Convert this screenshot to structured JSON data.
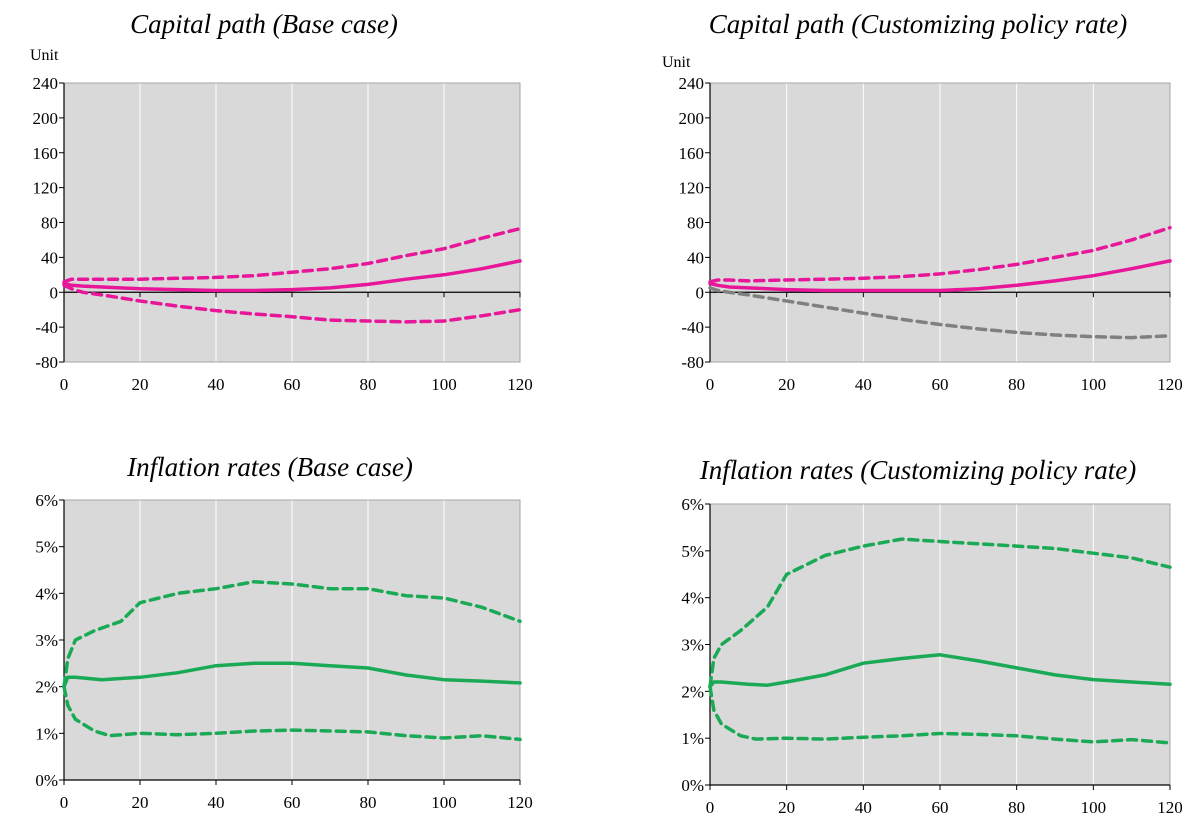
{
  "chart_data": [
    {
      "type": "line",
      "title": "Capital path (Base case)",
      "ylabel": "Unit",
      "xlabel": "",
      "x_ticks": [
        0,
        20,
        40,
        60,
        80,
        100,
        120
      ],
      "y_ticks": [
        -80,
        -40,
        0,
        40,
        80,
        120,
        160,
        200,
        240
      ],
      "y_tick_labels": [
        "-80",
        "-40",
        "0",
        "40",
        "80",
        "120",
        "160",
        "200",
        "240"
      ],
      "xlim": [
        0,
        120
      ],
      "ylim": [
        -80,
        240
      ],
      "grid": true,
      "series": [
        {
          "style": "solid",
          "color": "#e8179a",
          "x": [
            0,
            2,
            5,
            10,
            20,
            30,
            40,
            50,
            60,
            70,
            80,
            90,
            100,
            110,
            120
          ],
          "values": [
            10,
            8,
            7,
            6,
            4,
            3,
            2,
            2,
            3,
            5,
            9,
            15,
            20,
            27,
            36
          ]
        },
        {
          "style": "dashed",
          "color": "#e8179a",
          "x": [
            0,
            2,
            5,
            10,
            20,
            30,
            40,
            50,
            60,
            70,
            80,
            90,
            100,
            110,
            120
          ],
          "values": [
            12,
            15,
            15,
            15,
            15,
            16,
            17,
            19,
            23,
            27,
            33,
            42,
            50,
            62,
            73
          ]
        },
        {
          "style": "dashed",
          "color": "#e8179a",
          "x": [
            0,
            2,
            5,
            10,
            20,
            30,
            40,
            50,
            60,
            70,
            80,
            90,
            100,
            110,
            120
          ],
          "values": [
            8,
            4,
            0,
            -3,
            -10,
            -16,
            -21,
            -25,
            -28,
            -32,
            -33,
            -34,
            -33,
            -27,
            -20
          ]
        }
      ]
    },
    {
      "type": "line",
      "title": "Capital path (Customizing policy rate)",
      "ylabel": "Unit",
      "xlabel": "",
      "x_ticks": [
        0,
        20,
        40,
        60,
        80,
        100,
        120
      ],
      "y_ticks": [
        -80,
        -40,
        0,
        40,
        80,
        120,
        160,
        200,
        240
      ],
      "y_tick_labels": [
        "-80",
        "-40",
        "0",
        "40",
        "80",
        "120",
        "160",
        "200",
        "240"
      ],
      "xlim": [
        0,
        120
      ],
      "ylim": [
        -80,
        240
      ],
      "grid": true,
      "series": [
        {
          "style": "solid",
          "color": "#e8179a",
          "x": [
            0,
            2,
            5,
            10,
            20,
            30,
            40,
            50,
            60,
            70,
            80,
            90,
            100,
            110,
            120
          ],
          "values": [
            10,
            8,
            6,
            5,
            3,
            2,
            2,
            2,
            2,
            4,
            8,
            13,
            19,
            27,
            36
          ]
        },
        {
          "style": "dashed",
          "color": "#e8179a",
          "x": [
            0,
            2,
            5,
            10,
            20,
            30,
            40,
            50,
            60,
            70,
            80,
            90,
            100,
            110,
            120
          ],
          "values": [
            12,
            14,
            14,
            13,
            14,
            15,
            16,
            18,
            21,
            26,
            32,
            40,
            48,
            60,
            74
          ]
        },
        {
          "style": "dashed",
          "color": "#808080",
          "x": [
            0,
            2,
            5,
            10,
            20,
            30,
            40,
            50,
            60,
            70,
            80,
            90,
            100,
            110,
            120
          ],
          "values": [
            5,
            2,
            0,
            -3,
            -10,
            -17,
            -24,
            -31,
            -37,
            -42,
            -46,
            -49,
            -51,
            -52,
            -50
          ]
        }
      ]
    },
    {
      "type": "line",
      "title": "Inflation rates (Base case)",
      "ylabel": "",
      "xlabel": "",
      "x_ticks": [
        0,
        20,
        40,
        60,
        80,
        100,
        120
      ],
      "y_ticks": [
        0,
        1,
        2,
        3,
        4,
        5,
        6
      ],
      "y_tick_labels": [
        "0%",
        "1%",
        "2%",
        "3%",
        "4%",
        "5%",
        "6%"
      ],
      "xlim": [
        0,
        120
      ],
      "ylim": [
        0,
        6
      ],
      "grid": true,
      "series": [
        {
          "style": "solid",
          "color": "#1aaa55",
          "x": [
            0,
            1,
            3,
            10,
            20,
            30,
            40,
            50,
            60,
            70,
            80,
            90,
            100,
            110,
            120
          ],
          "values": [
            2.0,
            2.2,
            2.2,
            2.15,
            2.2,
            2.3,
            2.45,
            2.5,
            2.5,
            2.45,
            2.4,
            2.25,
            2.15,
            2.12,
            2.08
          ]
        },
        {
          "style": "dashed",
          "color": "#1aaa55",
          "x": [
            0,
            1,
            3,
            8,
            15,
            20,
            30,
            40,
            50,
            60,
            70,
            80,
            90,
            100,
            110,
            120
          ],
          "values": [
            2.0,
            2.6,
            3.0,
            3.2,
            3.4,
            3.8,
            4.0,
            4.1,
            4.25,
            4.2,
            4.1,
            4.1,
            3.95,
            3.9,
            3.7,
            3.4
          ]
        },
        {
          "style": "dashed",
          "color": "#1aaa55",
          "x": [
            0,
            1,
            3,
            8,
            12,
            20,
            30,
            40,
            50,
            60,
            70,
            80,
            90,
            100,
            110,
            120
          ],
          "values": [
            2.0,
            1.6,
            1.3,
            1.05,
            0.95,
            1.0,
            0.97,
            1.0,
            1.05,
            1.07,
            1.05,
            1.03,
            0.95,
            0.9,
            0.95,
            0.87
          ]
        }
      ]
    },
    {
      "type": "line",
      "title": "Inflation rates (Customizing policy rate)",
      "ylabel": "",
      "xlabel": "",
      "x_ticks": [
        0,
        20,
        40,
        60,
        80,
        100,
        120
      ],
      "y_ticks": [
        0,
        1,
        2,
        3,
        4,
        5,
        6
      ],
      "y_tick_labels": [
        "0%",
        "1%",
        "2%",
        "3%",
        "4%",
        "5%",
        "6%"
      ],
      "xlim": [
        0,
        120
      ],
      "ylim": [
        0,
        6
      ],
      "grid": true,
      "series": [
        {
          "style": "solid",
          "color": "#1aaa55",
          "x": [
            0,
            1,
            3,
            10,
            15,
            20,
            30,
            40,
            50,
            60,
            70,
            80,
            90,
            100,
            110,
            120
          ],
          "values": [
            2.1,
            2.2,
            2.2,
            2.15,
            2.13,
            2.2,
            2.35,
            2.6,
            2.7,
            2.78,
            2.65,
            2.5,
            2.35,
            2.25,
            2.2,
            2.15
          ]
        },
        {
          "style": "dashed",
          "color": "#1aaa55",
          "x": [
            0,
            1,
            3,
            8,
            15,
            20,
            30,
            40,
            50,
            60,
            70,
            80,
            90,
            100,
            110,
            120
          ],
          "values": [
            2.1,
            2.7,
            3.0,
            3.3,
            3.8,
            4.5,
            4.9,
            5.1,
            5.25,
            5.2,
            5.15,
            5.1,
            5.05,
            4.95,
            4.85,
            4.65
          ]
        },
        {
          "style": "dashed",
          "color": "#1aaa55",
          "x": [
            0,
            1,
            3,
            8,
            12,
            20,
            30,
            40,
            50,
            60,
            70,
            80,
            90,
            100,
            110,
            120
          ],
          "values": [
            2.1,
            1.6,
            1.3,
            1.05,
            0.98,
            1.0,
            0.98,
            1.02,
            1.05,
            1.1,
            1.08,
            1.05,
            0.98,
            0.92,
            0.97,
            0.9
          ]
        }
      ]
    }
  ]
}
